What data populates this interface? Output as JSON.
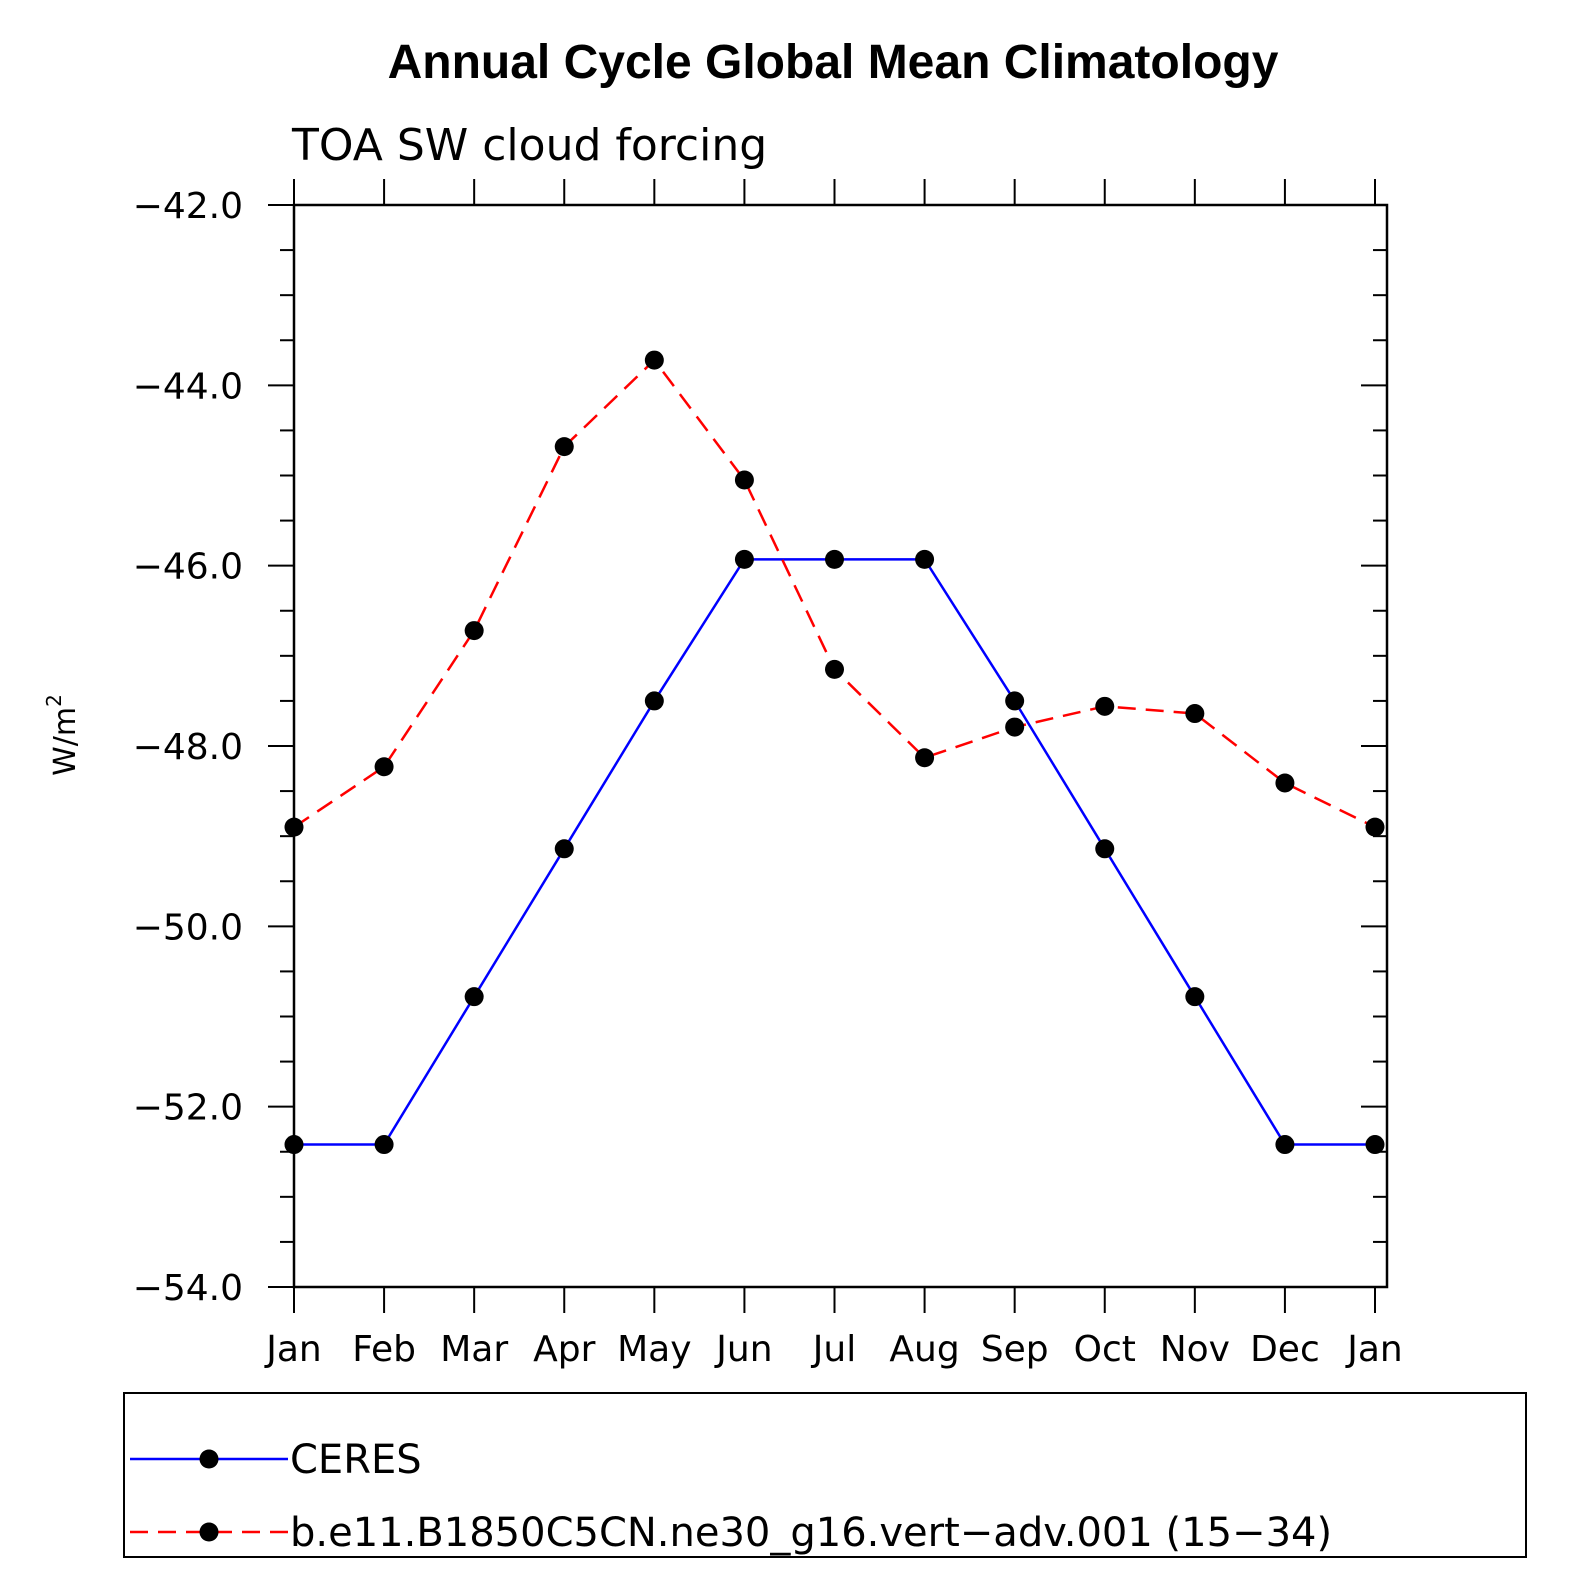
{
  "chart_data": {
    "type": "line",
    "title": "Annual Cycle Global Mean Climatology",
    "subtitle": "TOA SW cloud forcing",
    "ylabel": "W/m",
    "ylabel_sup": "2",
    "xlabel": "",
    "categories": [
      "Jan",
      "Feb",
      "Mar",
      "Apr",
      "May",
      "Jun",
      "Jul",
      "Aug",
      "Sep",
      "Oct",
      "Nov",
      "Dec",
      "Jan"
    ],
    "ylim": [
      -54.0,
      -42.0
    ],
    "yticks": [
      "-42.0",
      "-44.0",
      "-46.0",
      "-48.0",
      "-50.0",
      "-52.0",
      "-54.0"
    ],
    "grid": false,
    "legend_position": "bottom",
    "series": [
      {
        "name": "CERES",
        "color": "#0000ff",
        "line_style": "solid",
        "marker": "filled-circle",
        "values": [
          -52.42,
          -52.42,
          -50.78,
          -49.14,
          -47.5,
          -45.93,
          -45.93,
          -45.93,
          -47.5,
          -49.14,
          -50.78,
          -52.42,
          -52.42
        ]
      },
      {
        "name": "b.e11.B1850C5CN.ne30_g16.vert−adv.001 (15−34)",
        "color": "#ff0000",
        "line_style": "dashed",
        "marker": "filled-circle",
        "values": [
          -48.9,
          -48.23,
          -46.72,
          -44.68,
          -43.72,
          -45.05,
          -47.15,
          -48.13,
          -47.79,
          -47.56,
          -47.64,
          -48.41,
          -48.9
        ]
      }
    ]
  }
}
